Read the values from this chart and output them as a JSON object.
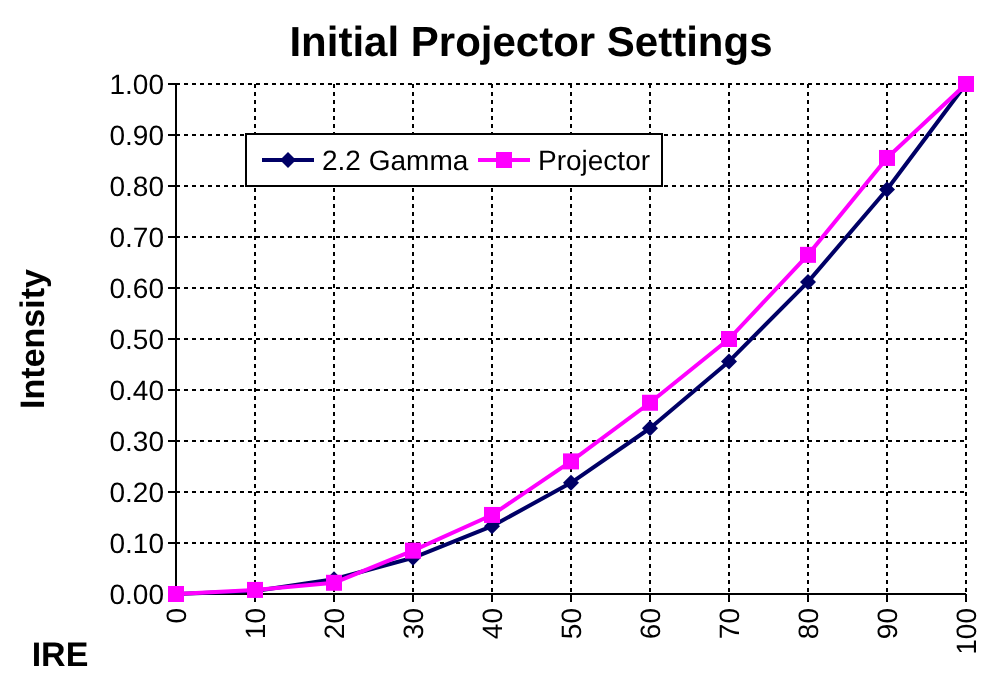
{
  "chart_data": {
    "type": "line",
    "title": "Initial Projector Settings",
    "ylabel": "Intensity",
    "xlabel": "IRE",
    "categories": [
      "0",
      "10",
      "20",
      "30",
      "40",
      "50",
      "60",
      "70",
      "80",
      "90",
      "100"
    ],
    "series": [
      {
        "name": "2.2 Gamma",
        "color": "#000066",
        "marker": "diamond",
        "values": [
          0.0,
          0.006,
          0.029,
          0.071,
          0.133,
          0.218,
          0.325,
          0.456,
          0.612,
          0.793,
          1.0
        ]
      },
      {
        "name": "Projector",
        "color": "#ff00ff",
        "marker": "square",
        "values": [
          0.0,
          0.008,
          0.022,
          0.085,
          0.155,
          0.26,
          0.375,
          0.5,
          0.665,
          0.855,
          1.0
        ]
      }
    ],
    "ylim": [
      0,
      1
    ],
    "yticks": [
      {
        "value": 0,
        "label": "0.00"
      },
      {
        "value": 0.1,
        "label": "0.10"
      },
      {
        "value": 0.2,
        "label": "0.20"
      },
      {
        "value": 0.3,
        "label": "0.30"
      },
      {
        "value": 0.4,
        "label": "0.40"
      },
      {
        "value": 0.5,
        "label": "0.50"
      },
      {
        "value": 0.6,
        "label": "0.60"
      },
      {
        "value": 0.7,
        "label": "0.70"
      },
      {
        "value": 0.8,
        "label": "0.80"
      },
      {
        "value": 0.9,
        "label": "0.90"
      },
      {
        "value": 1,
        "label": "1.00"
      }
    ],
    "grid": true,
    "legend": "top left",
    "line_style": "solid"
  }
}
